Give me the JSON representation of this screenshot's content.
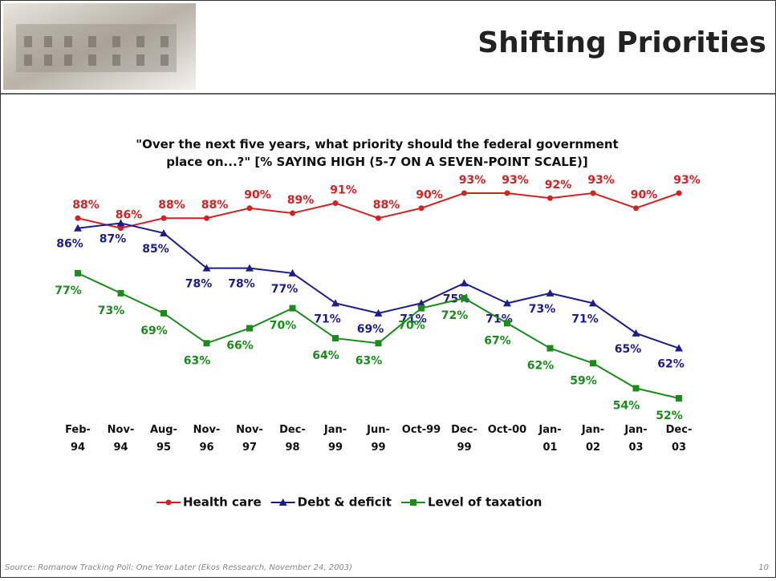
{
  "title": "Shifting Priorities",
  "chart_data": {
    "type": "line",
    "title": "\"Over the next five years, what priority should the federal government\nplace on...?\" [% SAYING HIGH (5-7 ON A SEVEN-POINT SCALE)]",
    "categories": [
      "Feb-\n94",
      "Nov-\n94",
      "Aug-\n95",
      "Nov-\n96",
      "Nov-\n97",
      "Dec-\n98",
      "Jan-\n99",
      "Jun-\n99",
      "Oct-99",
      "Dec-\n99",
      "Oct-00",
      "Jan-\n01",
      "Jan-\n02",
      "Jan-\n03",
      "Dec-\n03"
    ],
    "series": [
      {
        "name": "Health care",
        "color": "#d42222",
        "marker": "circle",
        "values": [
          88,
          86,
          88,
          88,
          90,
          89,
          91,
          88,
          90,
          93,
          93,
          92,
          93,
          90,
          93
        ],
        "value_labels": [
          "88%",
          "86%",
          "88%",
          "88%",
          "90%",
          "89%",
          "91%",
          "88%",
          "90%",
          "93%",
          "93%",
          "92%",
          "93%",
          "90%",
          "93%"
        ]
      },
      {
        "name": "Debt & deficit",
        "color": "#1c1c8e",
        "marker": "triangle",
        "values": [
          86,
          87,
          85,
          78,
          78,
          77,
          71,
          69,
          71,
          75,
          71,
          73,
          71,
          65,
          62
        ],
        "value_labels": [
          "86%",
          "87%",
          "85%",
          "78%",
          "78%",
          "77%",
          "71%",
          "69%",
          "71%",
          "75%",
          "71%",
          "73%",
          "71%",
          "65%",
          "62%"
        ]
      },
      {
        "name": "Level of taxation",
        "color": "#1a8c1a",
        "marker": "square",
        "values": [
          77,
          73,
          69,
          63,
          66,
          70,
          64,
          63,
          70,
          72,
          67,
          62,
          59,
          54,
          52
        ],
        "value_labels": [
          "77%",
          "73%",
          "69%",
          "63%",
          "66%",
          "70%",
          "64%",
          "63%",
          "70%",
          "72%",
          "67%",
          "62%",
          "59%",
          "54%",
          "52%"
        ]
      }
    ],
    "legend": "bottom"
  },
  "footer": {
    "source": "Source: Romanow Tracking Poll:  One Year Later (Ekos Ressearch, November 24, 2003)",
    "page": "10"
  }
}
